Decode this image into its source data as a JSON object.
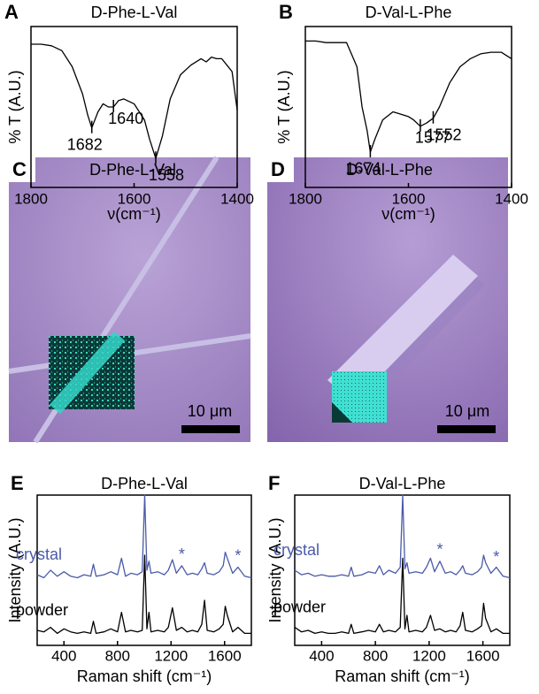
{
  "chart_data": [
    {
      "type": "line",
      "panel": "A",
      "title": "D-Phe-L-Val",
      "xlabel": "ν(cm⁻¹)",
      "ylabel": "% T (A.U.)",
      "xlim": [
        1800,
        1400
      ],
      "ylim": [
        0,
        100
      ],
      "xticks": [
        1800,
        1600,
        1400
      ],
      "x": [
        1800,
        1780,
        1760,
        1740,
        1720,
        1700,
        1690,
        1682,
        1670,
        1660,
        1650,
        1640,
        1630,
        1620,
        1600,
        1580,
        1570,
        1558,
        1545,
        1530,
        1510,
        1490,
        1470,
        1460,
        1450,
        1440,
        1430,
        1420,
        1410,
        1400
      ],
      "series": [
        {
          "color": "#000000",
          "values": [
            89,
            89,
            88,
            85,
            75,
            58,
            45,
            37,
            47,
            52,
            50,
            50,
            54,
            55,
            52,
            42,
            30,
            18,
            32,
            55,
            70,
            76,
            80,
            78,
            81,
            80,
            80,
            76,
            72,
            48
          ]
        }
      ],
      "peaks": [
        1682,
        1640,
        1558
      ]
    },
    {
      "type": "line",
      "panel": "B",
      "title": "D-Val-L-Phe",
      "xlabel": "ν(cm⁻¹)",
      "ylabel": "% T (A.U.)",
      "xlim": [
        1800,
        1400
      ],
      "ylim": [
        0,
        100
      ],
      "xticks": [
        1800,
        1600,
        1400
      ],
      "x": [
        1800,
        1780,
        1760,
        1740,
        1720,
        1700,
        1690,
        1680,
        1674,
        1665,
        1650,
        1630,
        1620,
        1600,
        1590,
        1577,
        1565,
        1552,
        1540,
        1520,
        1500,
        1480,
        1460,
        1440,
        1420,
        1410,
        1400
      ],
      "series": [
        {
          "color": "#000000",
          "values": [
            91,
            91,
            90,
            90,
            90,
            75,
            50,
            35,
            22,
            30,
            42,
            47,
            46,
            44,
            42,
            38,
            40,
            43,
            50,
            65,
            75,
            80,
            83,
            84,
            84,
            82,
            80
          ]
        }
      ],
      "peaks": [
        1674,
        1577,
        1552
      ]
    },
    {
      "type": "line",
      "panel": "E",
      "title": "D-Phe-L-Val",
      "xlabel": "Raman shift (cm⁻¹)",
      "ylabel": "Intensity (A.U.)",
      "xlim": [
        200,
        1800
      ],
      "ylim": [
        0,
        100
      ],
      "xticks": [
        400,
        800,
        1200,
        1600
      ],
      "x": [
        200,
        250,
        300,
        350,
        400,
        450,
        500,
        550,
        600,
        620,
        640,
        700,
        750,
        800,
        830,
        860,
        900,
        950,
        985,
        1003,
        1020,
        1035,
        1050,
        1100,
        1150,
        1180,
        1210,
        1240,
        1280,
        1320,
        1360,
        1400,
        1430,
        1450,
        1470,
        1520,
        1560,
        1590,
        1605,
        1620,
        1660,
        1700,
        1750,
        1800
      ],
      "series": [
        {
          "name": "crystal",
          "color": "#4a5aa8",
          "values": [
            47,
            45,
            50,
            46,
            49,
            46,
            45,
            47,
            46,
            54,
            46,
            47,
            49,
            47,
            58,
            46,
            48,
            47,
            49,
            100,
            50,
            56,
            48,
            49,
            47,
            50,
            57,
            48,
            53,
            47,
            48,
            47,
            51,
            55,
            48,
            47,
            49,
            53,
            62,
            58,
            48,
            52,
            46,
            45
          ]
        },
        {
          "name": "powder",
          "color": "#000000",
          "values": [
            10,
            9,
            12,
            8,
            11,
            9,
            8,
            9,
            8,
            16,
            8,
            9,
            11,
            9,
            22,
            9,
            10,
            9,
            10,
            60,
            11,
            22,
            9,
            10,
            9,
            12,
            25,
            10,
            12,
            9,
            10,
            9,
            14,
            30,
            10,
            9,
            11,
            14,
            26,
            20,
            9,
            12,
            8,
            8
          ]
        }
      ],
      "annotations": [
        {
          "text": "*",
          "x": 1280,
          "y": 60
        },
        {
          "text": "*",
          "x": 1700,
          "y": 59
        }
      ]
    },
    {
      "type": "line",
      "panel": "F",
      "title": "D-Val-L-Phe",
      "xlabel": "Raman shift (cm⁻¹)",
      "ylabel": "Intensity (A.U.)",
      "xlim": [
        200,
        1800
      ],
      "ylim": [
        0,
        100
      ],
      "xticks": [
        400,
        800,
        1200,
        1600
      ],
      "x": [
        200,
        250,
        300,
        350,
        400,
        450,
        500,
        550,
        600,
        620,
        640,
        700,
        750,
        800,
        830,
        860,
        900,
        950,
        985,
        1003,
        1020,
        1035,
        1050,
        1100,
        1150,
        1180,
        1210,
        1240,
        1280,
        1320,
        1360,
        1400,
        1430,
        1450,
        1470,
        1520,
        1560,
        1590,
        1605,
        1620,
        1660,
        1700,
        1750,
        1800
      ],
      "series": [
        {
          "name": "crystal",
          "color": "#4a5aa8",
          "values": [
            50,
            47,
            48,
            46,
            47,
            46,
            46,
            47,
            46,
            52,
            46,
            47,
            49,
            48,
            53,
            47,
            50,
            48,
            52,
            100,
            51,
            55,
            48,
            49,
            48,
            52,
            58,
            49,
            56,
            48,
            49,
            47,
            50,
            53,
            48,
            47,
            49,
            52,
            60,
            55,
            48,
            52,
            46,
            45
          ]
        },
        {
          "name": "powder",
          "color": "#000000",
          "values": [
            12,
            9,
            10,
            8,
            9,
            8,
            8,
            9,
            8,
            14,
            8,
            9,
            10,
            9,
            14,
            9,
            10,
            9,
            12,
            58,
            11,
            20,
            9,
            10,
            9,
            12,
            20,
            10,
            11,
            9,
            10,
            9,
            13,
            22,
            10,
            9,
            11,
            13,
            28,
            18,
            9,
            11,
            8,
            8
          ]
        }
      ],
      "annotations": [
        {
          "text": "*",
          "x": 1280,
          "y": 63
        },
        {
          "text": "*",
          "x": 1700,
          "y": 58
        }
      ]
    }
  ],
  "images": [
    {
      "panel": "C",
      "title": "D-Phe-L-Val",
      "scale_bar": "10 μm"
    },
    {
      "panel": "D",
      "title": "D-Val-L-Phe",
      "scale_bar": "10 μm"
    }
  ]
}
